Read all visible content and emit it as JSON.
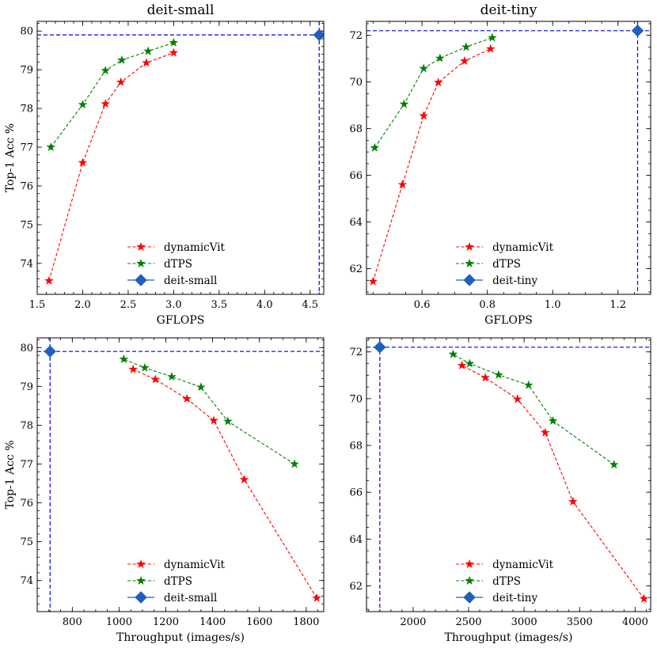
{
  "chart_data": [
    {
      "type": "line",
      "title": "deit-small",
      "xlabel": "GFLOPS",
      "ylabel": "Top-1 Acc %",
      "xlim": [
        1.5,
        4.65
      ],
      "ylim": [
        73.2,
        80.25
      ],
      "xticks": [
        1.5,
        2.0,
        2.5,
        3.0,
        3.5,
        4.0,
        4.5
      ],
      "xtick_labels": [
        "1.5",
        "2.0",
        "2.5",
        "3.0",
        "3.5",
        "4.0",
        "4.5"
      ],
      "yticks": [
        74,
        75,
        76,
        77,
        78,
        79,
        80
      ],
      "ytick_labels": [
        "74",
        "75",
        "76",
        "77",
        "78",
        "79",
        "80"
      ],
      "legend_position": "lower-center",
      "series": [
        {
          "name": "dynamicVit",
          "color": "#ff0000",
          "marker": "star",
          "linestyle": "dashed",
          "x": [
            1.63,
            2.0,
            2.25,
            2.42,
            2.7,
            3.0
          ],
          "y": [
            73.55,
            76.6,
            78.12,
            78.68,
            79.18,
            79.44
          ]
        },
        {
          "name": "dTPS",
          "color": "#008000",
          "marker": "star",
          "linestyle": "dashed",
          "x": [
            1.65,
            2.0,
            2.25,
            2.43,
            2.72,
            3.0
          ],
          "y": [
            77.0,
            78.1,
            78.98,
            79.25,
            79.48,
            79.7
          ]
        },
        {
          "name": "deit-small",
          "color": "#1f5fbf",
          "marker": "diamond",
          "linestyle": "solid",
          "x": [
            4.6
          ],
          "y": [
            79.9
          ],
          "refline_color": "#0000ee"
        }
      ]
    },
    {
      "type": "line",
      "title": "deit-tiny",
      "xlabel": "GFLOPS",
      "ylabel": "",
      "xlim": [
        0.43,
        1.3
      ],
      "ylim": [
        60.9,
        72.6
      ],
      "xticks": [
        0.6,
        0.8,
        1.0,
        1.2
      ],
      "xtick_labels": [
        "0.6",
        "0.8",
        "1.0",
        "1.2"
      ],
      "yticks": [
        62,
        64,
        66,
        68,
        70,
        72
      ],
      "ytick_labels": [
        "62",
        "64",
        "66",
        "68",
        "70",
        "72"
      ],
      "legend_position": "lower-center",
      "series": [
        {
          "name": "dynamicVit",
          "color": "#ff0000",
          "marker": "star",
          "linestyle": "dashed",
          "x": [
            0.45,
            0.54,
            0.605,
            0.65,
            0.73,
            0.81
          ],
          "y": [
            61.45,
            65.6,
            68.55,
            69.98,
            70.9,
            71.42
          ]
        },
        {
          "name": "dTPS",
          "color": "#008000",
          "marker": "star",
          "linestyle": "dashed",
          "x": [
            0.455,
            0.545,
            0.605,
            0.655,
            0.735,
            0.815
          ],
          "y": [
            67.18,
            69.05,
            70.58,
            71.02,
            71.5,
            71.9
          ]
        },
        {
          "name": "deit-tiny",
          "color": "#1f5fbf",
          "marker": "diamond",
          "linestyle": "solid",
          "x": [
            1.26
          ],
          "y": [
            72.2
          ],
          "refline_color": "#0000ee"
        }
      ]
    },
    {
      "type": "line",
      "title": "",
      "xlabel": "Throughput (images/s)",
      "ylabel": "Top-1 Acc %",
      "xlim": [
        650,
        1875
      ],
      "ylim": [
        73.2,
        80.25
      ],
      "xticks": [
        800,
        1000,
        1200,
        1400,
        1600,
        1800
      ],
      "xtick_labels": [
        "800",
        "1000",
        "1200",
        "1400",
        "1600",
        "1800"
      ],
      "yticks": [
        74,
        75,
        76,
        77,
        78,
        79,
        80
      ],
      "ytick_labels": [
        "74",
        "75",
        "76",
        "77",
        "78",
        "79",
        "80"
      ],
      "legend_position": "lower-center",
      "series": [
        {
          "name": "dynamicVit",
          "color": "#ff0000",
          "marker": "star",
          "linestyle": "dashed",
          "x": [
            1845,
            1535,
            1405,
            1290,
            1155,
            1060
          ],
          "y": [
            73.55,
            76.6,
            78.12,
            78.68,
            79.18,
            79.44
          ]
        },
        {
          "name": "dTPS",
          "color": "#008000",
          "marker": "star",
          "linestyle": "dashed",
          "x": [
            1750,
            1465,
            1350,
            1225,
            1110,
            1020
          ],
          "y": [
            77.0,
            78.1,
            78.98,
            79.25,
            79.48,
            79.7
          ]
        },
        {
          "name": "deit-small",
          "color": "#1f5fbf",
          "marker": "diamond",
          "linestyle": "solid",
          "x": [
            705
          ],
          "y": [
            79.9
          ],
          "refline_color": "#0000ee"
        }
      ]
    },
    {
      "type": "line",
      "title": "",
      "xlabel": "Throughput (images/s)",
      "ylabel": "",
      "xlim": [
        1580,
        4140
      ],
      "ylim": [
        60.9,
        72.6
      ],
      "xticks": [
        2000,
        2500,
        3000,
        3500,
        4000
      ],
      "xtick_labels": [
        "2000",
        "2500",
        "3000",
        "3500",
        "4000"
      ],
      "yticks": [
        62,
        64,
        66,
        68,
        70,
        72
      ],
      "ytick_labels": [
        "62",
        "64",
        "66",
        "68",
        "70",
        "72"
      ],
      "legend_position": "lower-center",
      "series": [
        {
          "name": "dynamicVit",
          "color": "#ff0000",
          "marker": "star",
          "linestyle": "dashed",
          "x": [
            4080,
            3440,
            3190,
            2940,
            2650,
            2440
          ],
          "y": [
            61.45,
            65.6,
            68.55,
            69.98,
            70.9,
            71.42
          ]
        },
        {
          "name": "dTPS",
          "color": "#008000",
          "marker": "star",
          "linestyle": "dashed",
          "x": [
            3810,
            3260,
            3040,
            2770,
            2510,
            2360
          ],
          "y": [
            67.18,
            69.05,
            70.58,
            71.02,
            71.5,
            71.9
          ]
        },
        {
          "name": "deit-tiny",
          "color": "#1f5fbf",
          "marker": "diamond",
          "linestyle": "solid",
          "x": [
            1700
          ],
          "y": [
            72.2
          ],
          "refline_color": "#0000ee"
        }
      ]
    }
  ]
}
